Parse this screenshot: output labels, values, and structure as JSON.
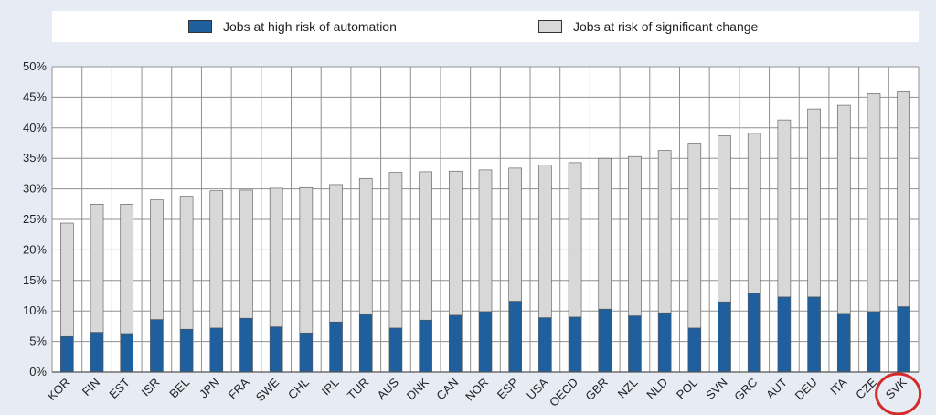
{
  "chart_data": {
    "type": "bar",
    "stacked": true,
    "legend": {
      "position": "top",
      "items": [
        {
          "label": "Jobs at high risk of automation",
          "color": "#1f5f9e"
        },
        {
          "label": "Jobs at risk of significant change",
          "color": "#d8d8d8"
        }
      ]
    },
    "categories": [
      "KOR",
      "FIN",
      "EST",
      "ISR",
      "BEL",
      "JPN",
      "FRA",
      "SWE",
      "CHL",
      "IRL",
      "TUR",
      "AUS",
      "DNK",
      "CAN",
      "NOR",
      "ESP",
      "USA",
      "OECD",
      "GBR",
      "NZL",
      "NLD",
      "POL",
      "SVN",
      "GRC",
      "AUT",
      "DEU",
      "ITA",
      "CZE",
      "SVK"
    ],
    "series": [
      {
        "name": "Jobs at high risk of automation",
        "color": "#1f5f9e",
        "values": [
          5.8,
          6.5,
          6.3,
          8.6,
          7.0,
          7.2,
          8.8,
          7.4,
          6.4,
          8.2,
          9.4,
          7.2,
          8.5,
          9.3,
          9.9,
          11.6,
          8.9,
          9.0,
          10.3,
          9.2,
          9.7,
          7.2,
          11.5,
          12.9,
          12.3,
          12.3,
          9.6,
          9.9,
          10.7
        ]
      },
      {
        "name": "Jobs at risk of significant change",
        "color": "#d8d8d8",
        "values": [
          18.6,
          21.0,
          21.2,
          19.6,
          21.8,
          22.5,
          21.0,
          22.7,
          23.8,
          22.5,
          22.3,
          25.5,
          24.3,
          23.6,
          23.2,
          21.8,
          25.0,
          25.3,
          24.7,
          26.1,
          26.6,
          30.3,
          27.2,
          26.2,
          29.0,
          30.8,
          34.1,
          35.7,
          35.2
        ]
      }
    ],
    "ylim": [
      0,
      50
    ],
    "yticks": [
      0,
      5,
      10,
      15,
      20,
      25,
      30,
      35,
      40,
      45,
      50
    ],
    "ytick_labels": [
      "0%",
      "5%",
      "10%",
      "15%",
      "20%",
      "25%",
      "30%",
      "35%",
      "40%",
      "45%",
      "50%"
    ],
    "grid": true,
    "highlight": {
      "category": "SVK",
      "style": "red circle"
    }
  }
}
